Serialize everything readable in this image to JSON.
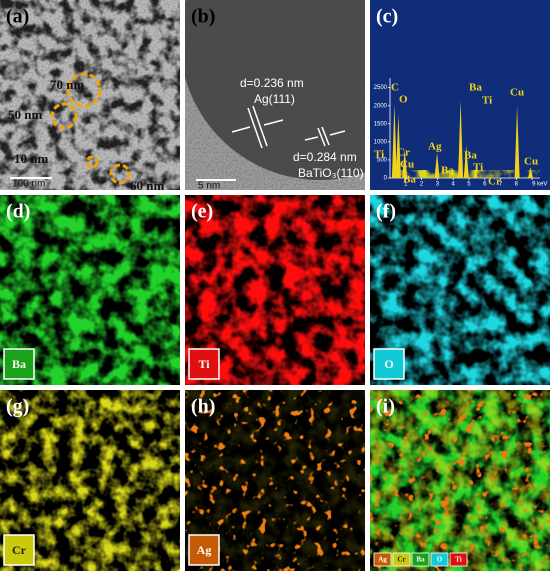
{
  "panels": [
    {
      "label": "(a)",
      "sizes": [
        "70 nm",
        "50 nm",
        "10 nm",
        "60 nm"
      ],
      "scale": "100 nm"
    },
    {
      "label": "(b)",
      "spacing_1": "d=0.236 nm",
      "plane_1": "Ag(111)",
      "spacing_2": "d=0.284 nm",
      "plane_2": "BaTiO₃(110)",
      "scale": "5 nm"
    },
    {
      "label": "(c)",
      "spectrum": {
        "xlim": [
          0,
          9.5
        ],
        "ylim": [
          0,
          2600
        ],
        "yticks": [
          0,
          500,
          1000,
          1500,
          2000,
          2500
        ],
        "xticks": [
          1,
          2,
          3,
          4,
          5,
          6,
          7,
          8,
          {
            "value": 9,
            "label": "9 keV"
          }
        ],
        "peaks": {
          "x": [
            0.28,
            0.53,
            0.93,
            2.98,
            4.47,
            4.83,
            5.41,
            8.05,
            8.9
          ],
          "values": [
            2050,
            1750,
            800,
            700,
            2150,
            900,
            250,
            2000,
            300
          ]
        },
        "peak_labels": [
          "C",
          "O",
          "Ti",
          "Cr",
          "Cu",
          "Ba",
          "Ag",
          "Ba",
          "Ba",
          "Ti",
          "Ba",
          "Ti",
          "Cr",
          "Cu",
          "Cu"
        ]
      }
    },
    {
      "label": "(d)",
      "element": "Ba"
    },
    {
      "label": "(e)",
      "element": "Ti"
    },
    {
      "label": "(f)",
      "element": "O"
    },
    {
      "label": "(g)",
      "element": "Cr"
    },
    {
      "label": "(h)",
      "element": "Ag"
    },
    {
      "label": "(i)",
      "legend": [
        "Ag",
        "Cr",
        "Ba",
        "O",
        "Ti"
      ]
    }
  ]
}
